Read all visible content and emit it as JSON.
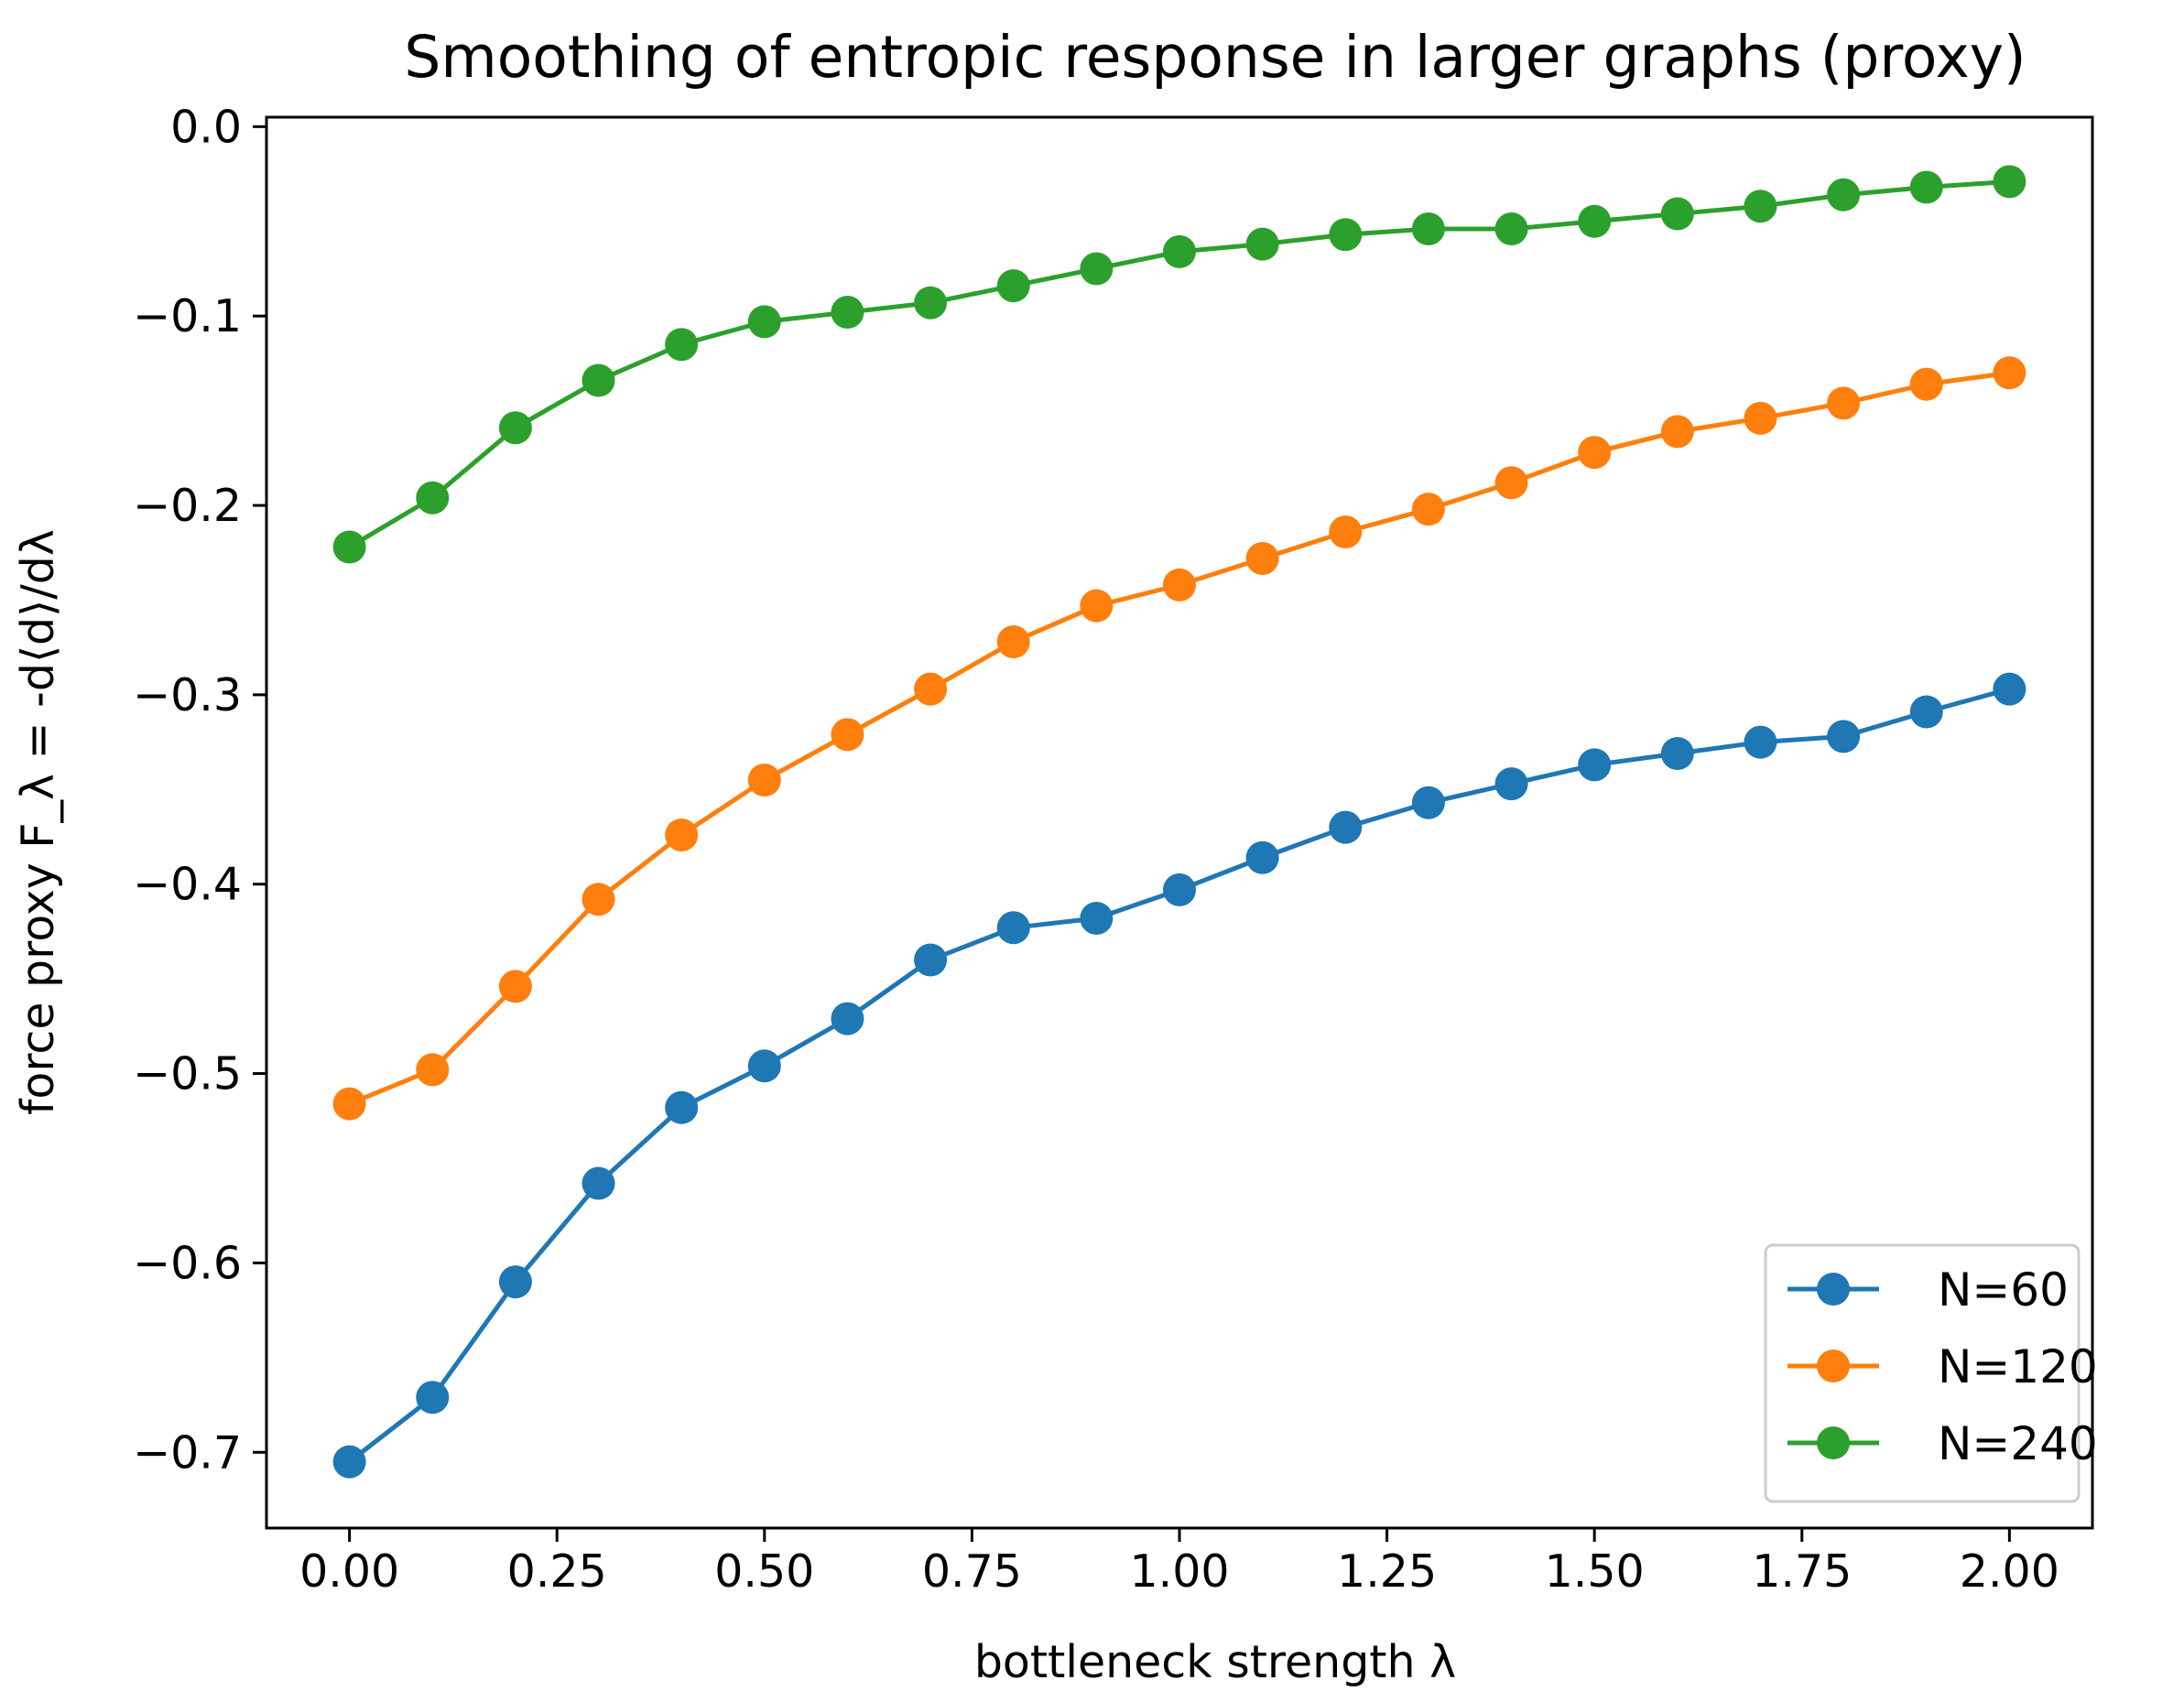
{
  "chart_data": {
    "type": "line",
    "title": "Smoothing of entropic response in larger graphs (proxy)",
    "xlabel": "bottleneck strength λ",
    "ylabel": "force proxy  F_λ = -d⟨d⟩/dλ",
    "xlim": [
      -0.1,
      2.1
    ],
    "ylim": [
      -0.74,
      0.005
    ],
    "xticks": [
      0.0,
      0.25,
      0.5,
      0.75,
      1.0,
      1.25,
      1.5,
      1.75,
      2.0
    ],
    "xtick_labels": [
      "0.00",
      "0.25",
      "0.50",
      "0.75",
      "1.00",
      "1.25",
      "1.50",
      "1.75",
      "2.00"
    ],
    "yticks": [
      0.0,
      -0.1,
      -0.2,
      -0.3,
      -0.4,
      -0.5,
      -0.6,
      -0.7
    ],
    "ytick_labels": [
      "0.0",
      "−0.1",
      "−0.2",
      "−0.3",
      "−0.4",
      "−0.5",
      "−0.6",
      "−0.7"
    ],
    "x": [
      0.0,
      0.1,
      0.2,
      0.3,
      0.4,
      0.5,
      0.6,
      0.7,
      0.8,
      0.9,
      1.0,
      1.1,
      1.2,
      1.3,
      1.4,
      1.5,
      1.6,
      1.7,
      1.8,
      1.9,
      2.0
    ],
    "series": [
      {
        "name": "N=60",
        "color": "#1f77b4",
        "values": [
          -0.705,
          -0.671,
          -0.61,
          -0.558,
          -0.518,
          -0.496,
          -0.471,
          -0.44,
          -0.423,
          -0.418,
          -0.403,
          -0.386,
          -0.37,
          -0.357,
          -0.347,
          -0.337,
          -0.331,
          -0.325,
          -0.322,
          -0.309,
          -0.297
        ]
      },
      {
        "name": "N=120",
        "color": "#ff7f0e",
        "values": [
          -0.516,
          -0.498,
          -0.454,
          -0.408,
          -0.374,
          -0.345,
          -0.321,
          -0.297,
          -0.272,
          -0.253,
          -0.242,
          -0.228,
          -0.214,
          -0.202,
          -0.188,
          -0.172,
          -0.161,
          -0.154,
          -0.146,
          -0.136,
          -0.13
        ]
      },
      {
        "name": "N=240",
        "color": "#2ca02c",
        "values": [
          -0.222,
          -0.196,
          -0.159,
          -0.134,
          -0.115,
          -0.103,
          -0.098,
          -0.093,
          -0.084,
          -0.075,
          -0.066,
          -0.062,
          -0.057,
          -0.054,
          -0.054,
          -0.05,
          -0.046,
          -0.042,
          -0.036,
          -0.032,
          -0.029
        ]
      }
    ],
    "legend_position": "lower-right",
    "grid": false
  }
}
